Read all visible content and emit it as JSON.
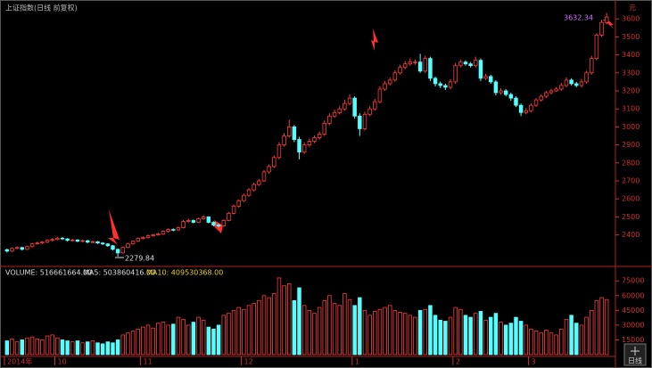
{
  "title": "上证指数(日线 前复权)",
  "unit_label": "元",
  "period_button": "日线",
  "volume_legend": [
    "VOLUME: 516661664.00",
    "MA5: 503860416.00",
    "MA10: 409530368.00"
  ],
  "chart_data": {
    "type": "candlestick",
    "up_color": "#ff3c3c",
    "down_color": "#54ffff",
    "categories": [
      "2014年",
      null,
      null,
      null,
      null,
      null,
      null,
      null,
      null,
      null,
      "10",
      null,
      null,
      null,
      null,
      null,
      null,
      null,
      null,
      null,
      null,
      null,
      null,
      null,
      null,
      null,
      null,
      "11",
      null,
      null,
      null,
      null,
      null,
      null,
      null,
      null,
      null,
      null,
      null,
      null,
      null,
      null,
      null,
      null,
      null,
      null,
      null,
      "12",
      null,
      null,
      null,
      null,
      null,
      null,
      null,
      null,
      null,
      null,
      null,
      null,
      null,
      null,
      null,
      null,
      null,
      null,
      null,
      null,
      null,
      "1",
      null,
      null,
      null,
      null,
      null,
      null,
      null,
      null,
      null,
      null,
      null,
      null,
      null,
      null,
      null,
      null,
      null,
      null,
      null,
      "2",
      null,
      null,
      null,
      null,
      null,
      null,
      null,
      null,
      null,
      null,
      null,
      null,
      null,
      null,
      "3",
      null,
      null,
      null,
      null,
      null,
      null,
      null,
      null,
      null,
      null,
      null,
      null,
      null,
      null,
      null
    ],
    "open": [
      2318,
      2310,
      2325,
      2330,
      2320,
      2335,
      2350,
      2355,
      2360,
      2370,
      2375,
      2382,
      2378,
      2370,
      2372,
      2365,
      2368,
      2360,
      2362,
      2355,
      2350,
      2340,
      2320,
      2300,
      2330,
      2350,
      2365,
      2380,
      2385,
      2395,
      2400,
      2405,
      2420,
      2430,
      2428,
      2440,
      2475,
      2480,
      2470,
      2490,
      2500,
      2470,
      2455,
      2450,
      2480,
      2520,
      2560,
      2590,
      2620,
      2650,
      2680,
      2700,
      2750,
      2780,
      2830,
      2900,
      2950,
      3000,
      2930,
      2860,
      2900,
      2920,
      2940,
      2960,
      3020,
      3060,
      3080,
      3100,
      3130,
      3160,
      3060,
      2990,
      3070,
      3100,
      3140,
      3210,
      3240,
      3260,
      3300,
      3330,
      3350,
      3360,
      3360,
      3310,
      3380,
      3270,
      3240,
      3230,
      3220,
      3250,
      3340,
      3360,
      3350,
      3340,
      3370,
      3270,
      3280,
      3250,
      3190,
      3200,
      3180,
      3160,
      3120,
      3080,
      3090,
      3120,
      3150,
      3170,
      3190,
      3200,
      3210,
      3230,
      3260,
      3240,
      3230,
      3250,
      3300,
      3380,
      3510,
      3580
    ],
    "high": [
      2324,
      2330,
      2336,
      2334,
      2340,
      2356,
      2362,
      2366,
      2376,
      2382,
      2390,
      2388,
      2382,
      2378,
      2376,
      2374,
      2372,
      2368,
      2366,
      2360,
      2354,
      2344,
      2324,
      2336,
      2356,
      2370,
      2386,
      2392,
      2402,
      2406,
      2412,
      2426,
      2436,
      2436,
      2446,
      2482,
      2490,
      2486,
      2496,
      2510,
      2504,
      2476,
      2462,
      2486,
      2528,
      2568,
      2598,
      2630,
      2660,
      2690,
      2712,
      2760,
      2792,
      2842,
      2915,
      2965,
      3040,
      3010,
      2945,
      2915,
      2935,
      2952,
      2975,
      3035,
      3075,
      3095,
      3115,
      3150,
      3180,
      3170,
      3075,
      3085,
      3115,
      3155,
      3225,
      3255,
      3275,
      3315,
      3345,
      3365,
      3380,
      3375,
      3406,
      3395,
      3390,
      3280,
      3252,
      3240,
      3265,
      3355,
      3375,
      3370,
      3360,
      3390,
      3380,
      3295,
      3290,
      3260,
      3215,
      3210,
      3190,
      3170,
      3130,
      3105,
      3130,
      3160,
      3180,
      3200,
      3212,
      3222,
      3245,
      3275,
      3270,
      3250,
      3265,
      3312,
      3395,
      3520,
      3595,
      3632.34
    ],
    "low": [
      2302,
      2305,
      2320,
      2314,
      2316,
      2330,
      2346,
      2350,
      2355,
      2364,
      2370,
      2372,
      2364,
      2364,
      2360,
      2360,
      2354,
      2355,
      2350,
      2344,
      2334,
      2314,
      2279.84,
      2296,
      2326,
      2346,
      2360,
      2375,
      2380,
      2390,
      2395,
      2400,
      2414,
      2420,
      2422,
      2436,
      2468,
      2464,
      2466,
      2484,
      2464,
      2448,
      2442,
      2446,
      2476,
      2514,
      2552,
      2584,
      2612,
      2642,
      2672,
      2694,
      2740,
      2772,
      2820,
      2890,
      2940,
      2915,
      2820,
      2850,
      2890,
      2910,
      2930,
      2950,
      3010,
      3050,
      3070,
      3090,
      3120,
      3045,
      2950,
      2980,
      3060,
      3090,
      3130,
      3200,
      3230,
      3250,
      3290,
      3320,
      3340,
      3345,
      3300,
      3300,
      3255,
      3225,
      3215,
      3205,
      3210,
      3240,
      3330,
      3340,
      3330,
      3330,
      3255,
      3260,
      3240,
      3175,
      3180,
      3170,
      3145,
      3110,
      3060,
      3070,
      3080,
      3110,
      3140,
      3160,
      3180,
      3195,
      3200,
      3220,
      3230,
      3220,
      3220,
      3240,
      3290,
      3370,
      3500,
      3570
    ],
    "close": [
      2310,
      2325,
      2330,
      2320,
      2335,
      2350,
      2355,
      2360,
      2370,
      2375,
      2382,
      2378,
      2370,
      2372,
      2365,
      2368,
      2360,
      2362,
      2355,
      2350,
      2340,
      2320,
      2300,
      2330,
      2350,
      2365,
      2380,
      2385,
      2395,
      2400,
      2405,
      2420,
      2430,
      2428,
      2440,
      2475,
      2480,
      2470,
      2490,
      2500,
      2470,
      2455,
      2450,
      2480,
      2520,
      2560,
      2590,
      2620,
      2650,
      2680,
      2700,
      2750,
      2780,
      2830,
      2900,
      2950,
      3000,
      2930,
      2860,
      2900,
      2920,
      2940,
      2960,
      3020,
      3060,
      3080,
      3100,
      3130,
      3160,
      3060,
      2990,
      3070,
      3100,
      3140,
      3210,
      3240,
      3260,
      3300,
      3330,
      3350,
      3360,
      3360,
      3310,
      3380,
      3270,
      3240,
      3230,
      3220,
      3250,
      3340,
      3360,
      3350,
      3340,
      3370,
      3270,
      3280,
      3250,
      3190,
      3200,
      3180,
      3160,
      3120,
      3080,
      3090,
      3120,
      3150,
      3170,
      3190,
      3200,
      3210,
      3230,
      3260,
      3240,
      3230,
      3250,
      3300,
      3380,
      3510,
      3580,
      3610
    ],
    "volume": [
      14000,
      16000,
      13000,
      15000,
      17000,
      18000,
      16000,
      15000,
      19000,
      20000,
      17000,
      15000,
      14000,
      13000,
      14000,
      12000,
      13000,
      14000,
      12000,
      11000,
      13000,
      12000,
      15000,
      20000,
      22000,
      24000,
      26000,
      28000,
      30000,
      27000,
      32000,
      33000,
      30000,
      31000,
      38000,
      36000,
      30000,
      33000,
      38000,
      35000,
      28000,
      26000,
      30000,
      40000,
      42000,
      45000,
      48000,
      46000,
      50000,
      52000,
      55000,
      60000,
      58000,
      62000,
      78000,
      70000,
      72000,
      55000,
      68000,
      50000,
      45000,
      42000,
      48000,
      55000,
      60000,
      52000,
      50000,
      62000,
      56000,
      50000,
      58000,
      45000,
      40000,
      44000,
      46000,
      48000,
      50000,
      45000,
      43000,
      42000,
      40000,
      38000,
      45000,
      46000,
      50000,
      40000,
      35000,
      34000,
      38000,
      48000,
      46000,
      40000,
      38000,
      42000,
      44000,
      35000,
      38000,
      42000,
      33000,
      30000,
      32000,
      38000,
      34000,
      30000,
      26000,
      24000,
      22000,
      25000,
      22000,
      20000,
      26000,
      36000,
      40000,
      32000,
      30000,
      38000,
      45000,
      55000,
      58000,
      56000
    ],
    "ylim": [
      2230,
      3690
    ],
    "yticks": [
      2400,
      2500,
      2600,
      2700,
      2800,
      2900,
      3000,
      3100,
      3200,
      3300,
      3400,
      3500,
      3600
    ],
    "volume_ylim": [
      0,
      87000
    ],
    "volume_yticks": [
      15000,
      30000,
      45000,
      60000,
      75000
    ]
  }
}
